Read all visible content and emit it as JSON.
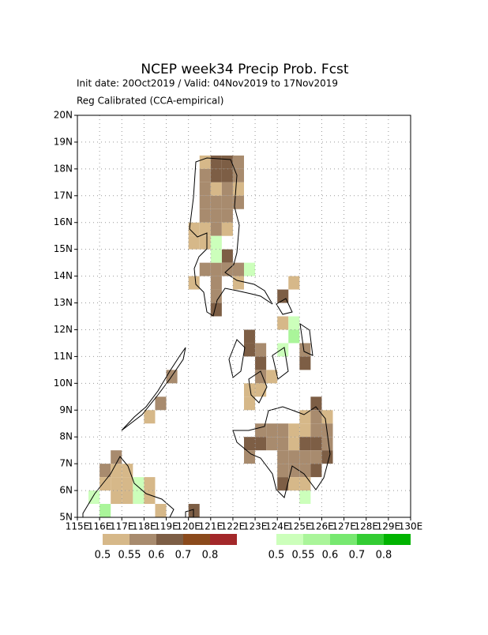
{
  "chart_data": {
    "type": "grid-map",
    "title": "NCEP week34 Precip Prob. Fcst",
    "subtitle": "Init date: 20Oct2019 / Valid: 04Nov2019 to 17Nov2019",
    "note": "Reg Calibrated (CCA-empirical)",
    "xlim": [
      115,
      130
    ],
    "ylim": [
      5,
      20
    ],
    "xticks": [
      {
        "value": 115,
        "label": "115E"
      },
      {
        "value": 116,
        "label": "116E"
      },
      {
        "value": 117,
        "label": "117E"
      },
      {
        "value": 118,
        "label": "118E"
      },
      {
        "value": 119,
        "label": "119E"
      },
      {
        "value": 120,
        "label": "120E"
      },
      {
        "value": 121,
        "label": "121E"
      },
      {
        "value": 122,
        "label": "122E"
      },
      {
        "value": 123,
        "label": "123E"
      },
      {
        "value": 124,
        "label": "124E"
      },
      {
        "value": 125,
        "label": "125E"
      },
      {
        "value": 126,
        "label": "126E"
      },
      {
        "value": 127,
        "label": "127E"
      },
      {
        "value": 128,
        "label": "128E"
      },
      {
        "value": 129,
        "label": "129E"
      },
      {
        "value": 130,
        "label": "130E"
      }
    ],
    "yticks": [
      {
        "value": 5,
        "label": "5N"
      },
      {
        "value": 6,
        "label": "6N"
      },
      {
        "value": 7,
        "label": "7N"
      },
      {
        "value": 8,
        "label": "8N"
      },
      {
        "value": 9,
        "label": "9N"
      },
      {
        "value": 10,
        "label": "10N"
      },
      {
        "value": 11,
        "label": "11N"
      },
      {
        "value": 12,
        "label": "12N"
      },
      {
        "value": 13,
        "label": "13N"
      },
      {
        "value": 14,
        "label": "14N"
      },
      {
        "value": 15,
        "label": "15N"
      },
      {
        "value": 16,
        "label": "16N"
      },
      {
        "value": 17,
        "label": "17N"
      },
      {
        "value": 18,
        "label": "18N"
      },
      {
        "value": 19,
        "label": "19N"
      },
      {
        "value": 20,
        "label": "20N"
      }
    ],
    "grid": true,
    "cell_size": 0.5,
    "levels": [
      0.5,
      0.55,
      0.6,
      0.7,
      0.8
    ],
    "below_colors": [
      "#d6b889",
      "#a88b6e",
      "#7d5e45",
      "#8b4a1c",
      "#a3282a"
    ],
    "above_colors": [
      "#ccffbb",
      "#aaf59a",
      "#77e870",
      "#33cc33",
      "#00b300"
    ],
    "below_cells": [
      [
        120.5,
        18,
        0.5
      ],
      [
        121,
        18,
        0.6
      ],
      [
        121.5,
        18,
        0.6
      ],
      [
        122,
        18,
        0.55
      ],
      [
        120.5,
        17.5,
        0.55
      ],
      [
        121,
        17.5,
        0.6
      ],
      [
        121.5,
        17.5,
        0.6
      ],
      [
        122,
        17.5,
        0.55
      ],
      [
        120.5,
        17,
        0.55
      ],
      [
        121,
        17,
        0.5
      ],
      [
        121.5,
        17,
        0.55
      ],
      [
        122,
        17,
        0.5
      ],
      [
        120.5,
        16.5,
        0.55
      ],
      [
        121,
        16.5,
        0.55
      ],
      [
        121.5,
        16.5,
        0.55
      ],
      [
        122,
        16.5,
        0.55
      ],
      [
        120.5,
        16,
        0.55
      ],
      [
        121,
        16,
        0.55
      ],
      [
        121.5,
        16,
        0.55
      ],
      [
        120,
        15.5,
        0.5
      ],
      [
        120.5,
        15.5,
        0.5
      ],
      [
        121,
        15.5,
        0.55
      ],
      [
        121.5,
        15.5,
        0.5
      ],
      [
        120,
        15,
        0.5
      ],
      [
        120.5,
        15,
        0.5
      ],
      [
        121.5,
        14.5,
        0.6
      ],
      [
        120.5,
        14,
        0.55
      ],
      [
        121,
        14,
        0.55
      ],
      [
        121.5,
        14,
        0.55
      ],
      [
        122,
        14,
        0.55
      ],
      [
        120,
        13.5,
        0.5
      ],
      [
        121,
        13.5,
        0.55
      ],
      [
        122,
        13.5,
        0.5
      ],
      [
        121,
        13,
        0.55
      ],
      [
        121,
        12.5,
        0.6
      ],
      [
        124,
        13,
        0.6
      ],
      [
        124.5,
        13.5,
        0.5
      ],
      [
        124,
        12,
        0.5
      ],
      [
        122.5,
        11.5,
        0.6
      ],
      [
        122.5,
        11,
        0.6
      ],
      [
        123,
        11,
        0.55
      ],
      [
        125,
        11,
        0.55
      ],
      [
        123,
        10.5,
        0.6
      ],
      [
        125,
        10.5,
        0.6
      ],
      [
        123,
        10,
        0.55
      ],
      [
        123.5,
        10,
        0.5
      ],
      [
        122.5,
        9.5,
        0.5
      ],
      [
        123,
        9.5,
        0.5
      ],
      [
        122.5,
        9,
        0.5
      ],
      [
        125.5,
        9,
        0.6
      ],
      [
        125,
        8.5,
        0.5
      ],
      [
        125.5,
        8.5,
        0.55
      ],
      [
        126,
        8.5,
        0.5
      ],
      [
        123,
        8,
        0.55
      ],
      [
        123.5,
        8,
        0.55
      ],
      [
        124,
        8,
        0.55
      ],
      [
        124.5,
        8,
        0.5
      ],
      [
        125,
        8,
        0.5
      ],
      [
        125.5,
        8,
        0.55
      ],
      [
        126,
        8,
        0.55
      ],
      [
        122.5,
        7.5,
        0.6
      ],
      [
        123,
        7.5,
        0.6
      ],
      [
        123.5,
        7.5,
        0.55
      ],
      [
        124,
        7.5,
        0.55
      ],
      [
        124.5,
        7.5,
        0.5
      ],
      [
        125,
        7.5,
        0.6
      ],
      [
        125.5,
        7.5,
        0.6
      ],
      [
        126,
        7.5,
        0.55
      ],
      [
        122.5,
        7,
        0.55
      ],
      [
        124,
        7,
        0.55
      ],
      [
        124.5,
        7,
        0.55
      ],
      [
        125,
        7,
        0.55
      ],
      [
        125.5,
        7,
        0.55
      ],
      [
        126,
        7,
        0.6
      ],
      [
        124,
        6.5,
        0.55
      ],
      [
        124.5,
        6.5,
        0.55
      ],
      [
        125,
        6.5,
        0.55
      ],
      [
        125.5,
        6.5,
        0.6
      ],
      [
        124,
        6,
        0.6
      ],
      [
        124.5,
        6,
        0.5
      ],
      [
        125,
        6,
        0.5
      ],
      [
        118.5,
        9,
        0.55
      ],
      [
        118,
        8.5,
        0.5
      ],
      [
        119,
        10,
        0.55
      ],
      [
        116.5,
        7,
        0.55
      ],
      [
        116,
        6.5,
        0.55
      ],
      [
        116.5,
        6.5,
        0.5
      ],
      [
        117,
        6.5,
        0.5
      ],
      [
        116,
        6,
        0.5
      ],
      [
        116.5,
        6,
        0.5
      ],
      [
        117,
        6,
        0.5
      ],
      [
        118,
        6,
        0.5
      ],
      [
        116.5,
        5.5,
        0.5
      ],
      [
        117,
        5.5,
        0.5
      ],
      [
        117.5,
        5.5,
        0.5
      ],
      [
        118,
        5.5,
        0.5
      ],
      [
        118.5,
        5,
        0.5
      ],
      [
        120,
        5,
        0.6
      ]
    ],
    "above_cells": [
      [
        121,
        15,
        0.5
      ],
      [
        121,
        14.5,
        0.5
      ],
      [
        122.5,
        14,
        0.5
      ],
      [
        124.5,
        12,
        0.5
      ],
      [
        124.5,
        11.5,
        0.55
      ],
      [
        124,
        11,
        0.5
      ],
      [
        125,
        5.5,
        0.5
      ],
      [
        117.5,
        6,
        0.5
      ],
      [
        115.5,
        5.5,
        0.5
      ],
      [
        116,
        5,
        0.55
      ],
      [
        117.5,
        5.5,
        0.5
      ]
    ]
  }
}
